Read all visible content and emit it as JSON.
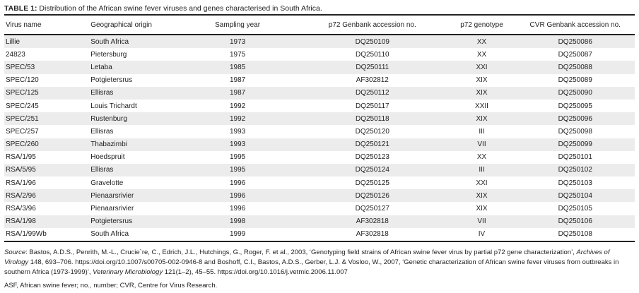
{
  "caption": {
    "label": "TABLE 1:",
    "text": " Distribution of the African swine fever viruses and genes characterised in South Africa."
  },
  "columns": [
    "Virus name",
    "Geographical origin",
    "Sampling year",
    "p72 Genbank accession no.",
    "p72 genotype",
    "CVR Genbank accession no."
  ],
  "rows": [
    [
      "Lillie",
      "South Africa",
      "1973",
      "DQ250109",
      "XX",
      "DQ250086"
    ],
    [
      "24823",
      "Pietersburg",
      "1975",
      "DQ250110",
      "XX",
      "DQ250087"
    ],
    [
      "SPEC/53",
      "Letaba",
      "1985",
      "DQ250111",
      "XXI",
      "DQ250088"
    ],
    [
      "SPEC/120",
      "Potgietersrus",
      "1987",
      "AF302812",
      "XIX",
      "DQ250089"
    ],
    [
      "SPEC/125",
      "Ellisras",
      "1987",
      "DQ250112",
      "XIX",
      "DQ250090"
    ],
    [
      "SPEC/245",
      "Louis Trichardt",
      "1992",
      "DQ250117",
      "XXII",
      "DQ250095"
    ],
    [
      "SPEC/251",
      "Rustenburg",
      "1992",
      "DQ250118",
      "XIX",
      "DQ250096"
    ],
    [
      "SPEC/257",
      "Ellisras",
      "1993",
      "DQ250120",
      "III",
      "DQ250098"
    ],
    [
      "SPEC/260",
      "Thabazimbi",
      "1993",
      "DQ250121",
      "VII",
      "DQ250099"
    ],
    [
      "RSA/1/95",
      "Hoedspruit",
      "1995",
      "DQ250123",
      "XX",
      "DQ250101"
    ],
    [
      "RSA/5/95",
      "Ellisras",
      "1995",
      "DQ250124",
      "III",
      "DQ250102"
    ],
    [
      "RSA/1/96",
      "Gravelotte",
      "1996",
      "DQ250125",
      "XXI",
      "DQ250103"
    ],
    [
      "RSA/2/96",
      "Pienaarsrivier",
      "1996",
      "DQ250126",
      "XIX",
      "DQ250104"
    ],
    [
      "RSA/3/96",
      "Pienaarsrivier",
      "1996",
      "DQ250127",
      "XIX",
      "DQ250105"
    ],
    [
      "RSA/1/98",
      "Potgietersrus",
      "1998",
      "AF302818",
      "VII",
      "DQ250106"
    ],
    [
      "RSA/1/99Wb",
      "South Africa",
      "1999",
      "AF302818",
      "IV",
      "DQ250108"
    ]
  ],
  "source": {
    "label": "Source",
    "p1": ": Bastos, A.D.S., Penrith, M.-L., Crucie`re, C., Edrich, J.L., Hutchings, G., Roger, F. et al., 2003, ‘Genotyping field strains of African swine fever virus by partial p72 gene characterization’, ",
    "j1": "Archives of Virology",
    "p2": " 148, 693–706. https://doi.org/10.1007/s00705-002-0946-8 and Boshoff, C.I., Bastos, A.D.S., Gerber, L.J. & Vosloo, W., 2007, ‘Genetic characterization of African swine fever viruses from outbreaks in southern Africa (1973-1999)’, ",
    "j2": "Veterinary Microbiology",
    "p3": " 121(1–2), 45–55. https://doi.org/10.1016/j.vetmic.2006.11.007"
  },
  "abbreviations": "ASF, African swine fever; no., number; CVR, Centre for Virus Research."
}
